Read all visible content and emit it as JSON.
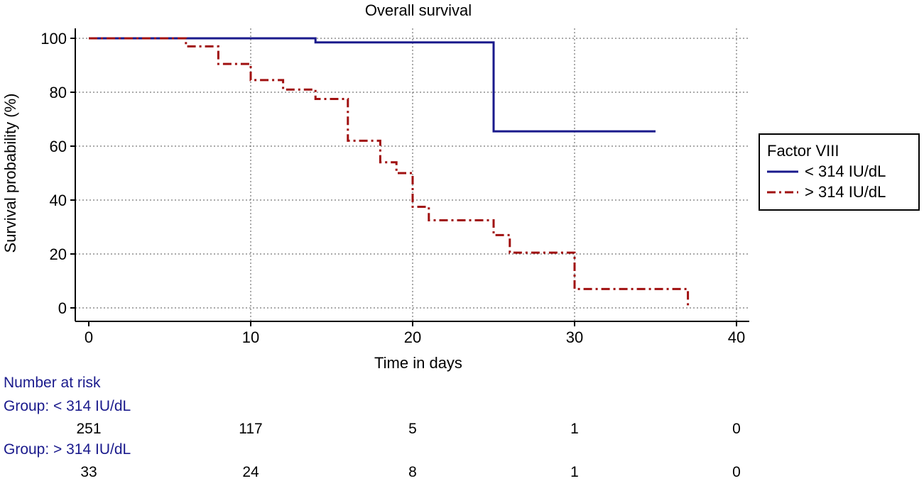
{
  "chart_data": {
    "type": "kaplan-meier step line",
    "title": "Overall survival",
    "xlabel": "Time in days",
    "ylabel": "Survival probability (%)",
    "xlim": [
      0,
      40
    ],
    "ylim": [
      0,
      100
    ],
    "xticks": [
      0,
      10,
      20,
      30,
      40
    ],
    "yticks": [
      0,
      20,
      40,
      60,
      80,
      100
    ],
    "grid": true,
    "legend": {
      "title": "Factor VIII",
      "position": "right"
    },
    "series": [
      {
        "name": "< 314 IU/dL",
        "color": "#1a1a8c",
        "style": "solid",
        "steps": [
          [
            0,
            100
          ],
          [
            14,
            98.5
          ],
          [
            25,
            65.5
          ]
        ],
        "end_x": 35
      },
      {
        "name": "> 314 IU/dL",
        "color": "#a01010",
        "style": "dash-dot",
        "steps": [
          [
            0,
            100
          ],
          [
            6,
            97
          ],
          [
            8,
            90.5
          ],
          [
            10,
            84.5
          ],
          [
            12,
            81
          ],
          [
            14,
            77.5
          ],
          [
            16,
            62
          ],
          [
            18,
            54
          ],
          [
            19,
            50
          ],
          [
            20,
            37.5
          ],
          [
            21,
            32.5
          ],
          [
            25,
            27
          ],
          [
            26,
            20.5
          ],
          [
            30,
            7
          ],
          [
            37,
            0
          ]
        ],
        "end_x": 37
      }
    ],
    "risk_table": {
      "title": "Number at risk",
      "groups": [
        {
          "label": "Group: < 314 IU/dL",
          "counts": [
            "251",
            "117",
            "5",
            "1",
            "0"
          ]
        },
        {
          "label": "Group: > 314 IU/dL",
          "counts": [
            "33",
            "24",
            "8",
            "1",
            "0"
          ]
        }
      ]
    }
  }
}
